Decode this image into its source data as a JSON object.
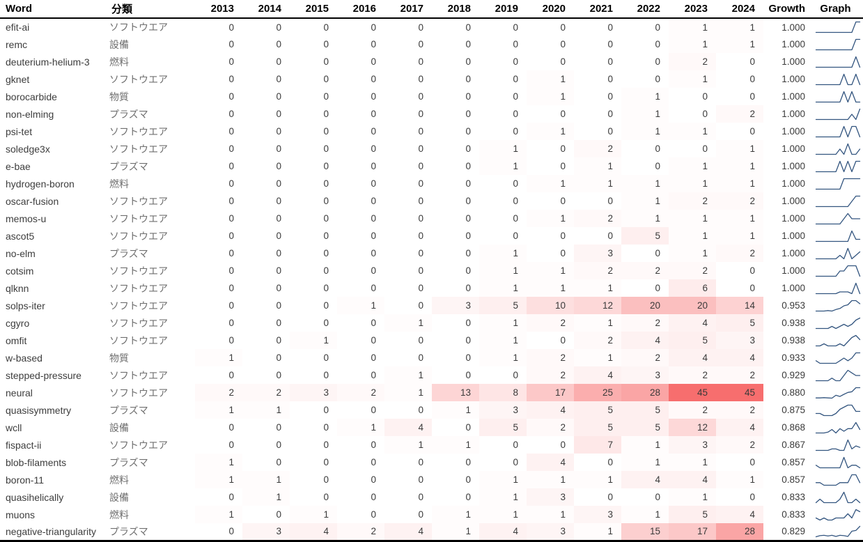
{
  "colors": {
    "heat_low": "#ffffff",
    "heat_high": "#f76e6e",
    "sparkline": "#33557f",
    "header_border": "#000000",
    "header_text": "#000000",
    "body_text": "#3a3a3a",
    "category_text": "#6f6f6f"
  },
  "chart_data": {
    "type": "table",
    "subtype": "heatmap-with-sparklines",
    "columns": [
      "Word",
      "分類",
      "2013",
      "2014",
      "2015",
      "2016",
      "2017",
      "2018",
      "2019",
      "2020",
      "2021",
      "2022",
      "2023",
      "2024",
      "Growth",
      "Graph"
    ],
    "years": [
      2013,
      2014,
      2015,
      2016,
      2017,
      2018,
      2019,
      2020,
      2021,
      2022,
      2023,
      2024
    ],
    "heatmap_max": 45,
    "graph_note": "sparkline of yearly values per row, scaled to row min/max",
    "rows": [
      {
        "word": "efit-ai",
        "category": "ソフトウエア",
        "values": [
          0,
          0,
          0,
          0,
          0,
          0,
          0,
          0,
          0,
          0,
          1,
          1
        ],
        "growth": "1.000"
      },
      {
        "word": "remc",
        "category": "設備",
        "values": [
          0,
          0,
          0,
          0,
          0,
          0,
          0,
          0,
          0,
          0,
          1,
          1
        ],
        "growth": "1.000"
      },
      {
        "word": "deuterium-helium-3",
        "category": "燃料",
        "values": [
          0,
          0,
          0,
          0,
          0,
          0,
          0,
          0,
          0,
          0,
          2,
          0
        ],
        "growth": "1.000"
      },
      {
        "word": "gknet",
        "category": "ソフトウエア",
        "values": [
          0,
          0,
          0,
          0,
          0,
          0,
          0,
          1,
          0,
          0,
          1,
          0
        ],
        "growth": "1.000"
      },
      {
        "word": "borocarbide",
        "category": "物質",
        "values": [
          0,
          0,
          0,
          0,
          0,
          0,
          0,
          1,
          0,
          1,
          0,
          0
        ],
        "growth": "1.000"
      },
      {
        "word": "non-elming",
        "category": "プラズマ",
        "values": [
          0,
          0,
          0,
          0,
          0,
          0,
          0,
          0,
          0,
          1,
          0,
          2
        ],
        "growth": "1.000"
      },
      {
        "word": "psi-tet",
        "category": "ソフトウエア",
        "values": [
          0,
          0,
          0,
          0,
          0,
          0,
          0,
          1,
          0,
          1,
          1,
          0
        ],
        "growth": "1.000"
      },
      {
        "word": "soledge3x",
        "category": "ソフトウエア",
        "values": [
          0,
          0,
          0,
          0,
          0,
          0,
          1,
          0,
          2,
          0,
          0,
          1
        ],
        "growth": "1.000"
      },
      {
        "word": "e-bae",
        "category": "プラズマ",
        "values": [
          0,
          0,
          0,
          0,
          0,
          0,
          1,
          0,
          1,
          0,
          1,
          1
        ],
        "growth": "1.000"
      },
      {
        "word": "hydrogen-boron",
        "category": "燃料",
        "values": [
          0,
          0,
          0,
          0,
          0,
          0,
          0,
          1,
          1,
          1,
          1,
          1
        ],
        "growth": "1.000"
      },
      {
        "word": "oscar-fusion",
        "category": "ソフトウエア",
        "values": [
          0,
          0,
          0,
          0,
          0,
          0,
          0,
          0,
          0,
          1,
          2,
          2
        ],
        "growth": "1.000"
      },
      {
        "word": "memos-u",
        "category": "ソフトウエア",
        "values": [
          0,
          0,
          0,
          0,
          0,
          0,
          0,
          1,
          2,
          1,
          1,
          1
        ],
        "growth": "1.000"
      },
      {
        "word": "ascot5",
        "category": "ソフトウエア",
        "values": [
          0,
          0,
          0,
          0,
          0,
          0,
          0,
          0,
          0,
          5,
          1,
          1
        ],
        "growth": "1.000"
      },
      {
        "word": "no-elm",
        "category": "プラズマ",
        "values": [
          0,
          0,
          0,
          0,
          0,
          0,
          1,
          0,
          3,
          0,
          1,
          2
        ],
        "growth": "1.000"
      },
      {
        "word": "cotsim",
        "category": "ソフトウエア",
        "values": [
          0,
          0,
          0,
          0,
          0,
          0,
          1,
          1,
          2,
          2,
          2,
          0
        ],
        "growth": "1.000"
      },
      {
        "word": "qlknn",
        "category": "ソフトウエア",
        "values": [
          0,
          0,
          0,
          0,
          0,
          0,
          1,
          1,
          1,
          0,
          6,
          0
        ],
        "growth": "1.000"
      },
      {
        "word": "solps-iter",
        "category": "ソフトウエア",
        "values": [
          0,
          0,
          0,
          1,
          0,
          3,
          5,
          10,
          12,
          20,
          20,
          14
        ],
        "growth": "0.953"
      },
      {
        "word": "cgyro",
        "category": "ソフトウエア",
        "values": [
          0,
          0,
          0,
          0,
          1,
          0,
          1,
          2,
          1,
          2,
          4,
          5
        ],
        "growth": "0.938"
      },
      {
        "word": "omfit",
        "category": "ソフトウエア",
        "values": [
          0,
          0,
          1,
          0,
          0,
          0,
          1,
          0,
          2,
          4,
          5,
          3
        ],
        "growth": "0.938"
      },
      {
        "word": "w-based",
        "category": "物質",
        "values": [
          1,
          0,
          0,
          0,
          0,
          0,
          1,
          2,
          1,
          2,
          4,
          4
        ],
        "growth": "0.933"
      },
      {
        "word": "stepped-pressure",
        "category": "ソフトウエア",
        "values": [
          0,
          0,
          0,
          0,
          1,
          0,
          0,
          2,
          4,
          3,
          2,
          2
        ],
        "growth": "0.929"
      },
      {
        "word": "neural",
        "category": "ソフトウエア",
        "values": [
          2,
          2,
          3,
          2,
          1,
          13,
          8,
          17,
          25,
          28,
          45,
          45
        ],
        "growth": "0.880"
      },
      {
        "word": "quasisymmetry",
        "category": "プラズマ",
        "values": [
          1,
          1,
          0,
          0,
          0,
          1,
          3,
          4,
          5,
          5,
          2,
          2
        ],
        "growth": "0.875"
      },
      {
        "word": "wcll",
        "category": "設備",
        "values": [
          0,
          0,
          0,
          1,
          4,
          0,
          5,
          2,
          5,
          5,
          12,
          4
        ],
        "growth": "0.868"
      },
      {
        "word": "fispact-ii",
        "category": "ソフトウエア",
        "values": [
          0,
          0,
          0,
          0,
          1,
          1,
          0,
          0,
          7,
          1,
          3,
          2
        ],
        "growth": "0.867"
      },
      {
        "word": "blob-filaments",
        "category": "プラズマ",
        "values": [
          1,
          0,
          0,
          0,
          0,
          0,
          0,
          4,
          0,
          1,
          1,
          0
        ],
        "growth": "0.857"
      },
      {
        "word": "boron-11",
        "category": "燃料",
        "values": [
          1,
          1,
          0,
          0,
          0,
          0,
          1,
          1,
          1,
          4,
          4,
          1
        ],
        "growth": "0.857"
      },
      {
        "word": "quasihelically",
        "category": "設備",
        "values": [
          0,
          1,
          0,
          0,
          0,
          0,
          1,
          3,
          0,
          0,
          1,
          0
        ],
        "growth": "0.833"
      },
      {
        "word": "muons",
        "category": "燃料",
        "values": [
          1,
          0,
          1,
          0,
          0,
          1,
          1,
          1,
          3,
          1,
          5,
          4
        ],
        "growth": "0.833"
      },
      {
        "word": "negative-triangularity",
        "category": "プラズマ",
        "values": [
          0,
          3,
          4,
          2,
          4,
          1,
          4,
          3,
          1,
          15,
          17,
          28
        ],
        "growth": "0.829"
      }
    ]
  }
}
